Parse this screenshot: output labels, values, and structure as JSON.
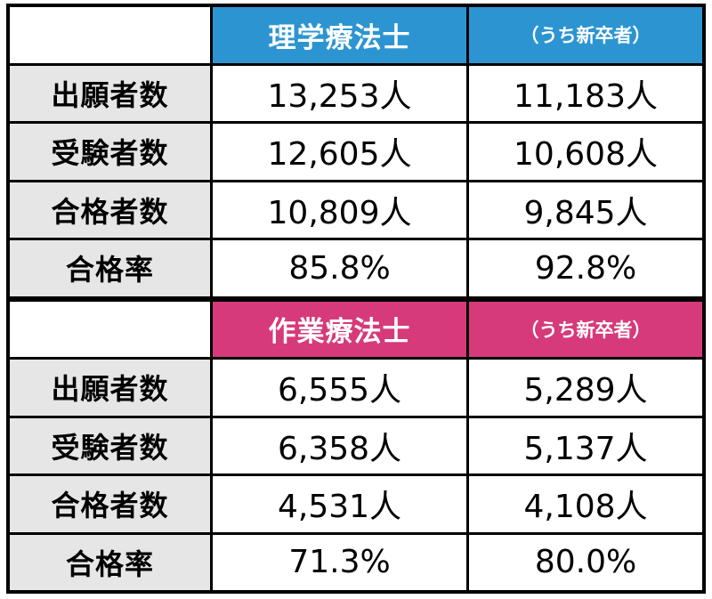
{
  "sections": [
    {
      "title": "理学療法士",
      "sub_title": "（うち新卒者）",
      "accent": "#2c95d1",
      "rows": [
        {
          "label": "出願者数",
          "total": "13,253人",
          "new_grad": "11,183人"
        },
        {
          "label": "受験者数",
          "total": "12,605人",
          "new_grad": "10,608人"
        },
        {
          "label": "合格者数",
          "total": "10,809人",
          "new_grad": "9,845人"
        },
        {
          "label": "合格率",
          "total": "85.8%",
          "new_grad": "92.8%"
        }
      ]
    },
    {
      "title": "作業療法士",
      "sub_title": "（うち新卒者）",
      "accent": "#d63a7a",
      "rows": [
        {
          "label": "出願者数",
          "total": "6,555人",
          "new_grad": "5,289人"
        },
        {
          "label": "受験者数",
          "total": "6,358人",
          "new_grad": "5,137人"
        },
        {
          "label": "合格者数",
          "total": "4,531人",
          "new_grad": "4,108人"
        },
        {
          "label": "合格率",
          "total": "71.3%",
          "new_grad": "80.0%"
        }
      ]
    }
  ]
}
